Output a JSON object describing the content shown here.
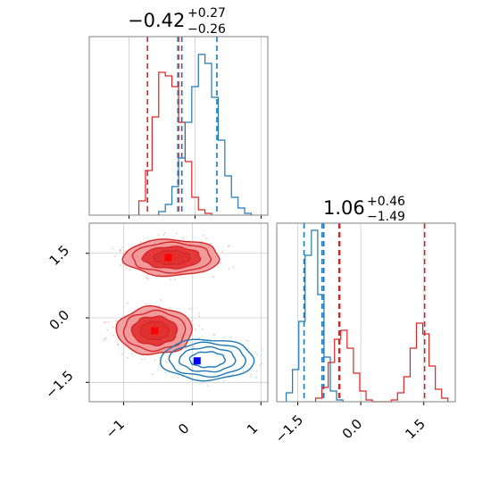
{
  "titles": {
    "p1": {
      "main": "−0.42",
      "sup": "+0.27",
      "sub": "−0.26"
    },
    "p2": {
      "main": "1.06",
      "sup": "+0.46",
      "sub": "−1.49"
    }
  },
  "colors": {
    "red": "#d62728",
    "blue": "#1f77b4",
    "red_fill": "#f0999a",
    "red_dark": "#e03030",
    "marker_red": "#ff0000",
    "marker_blue": "#0000ff",
    "grid": "#cccccc",
    "frame": "#808080"
  },
  "chart_data": [
    {
      "type": "histogram",
      "panel": "marginal-param1",
      "xlim": [
        -1.6,
        1.1
      ],
      "xticks": [
        -1,
        0,
        1
      ],
      "grid": true,
      "series": [
        {
          "color": "red",
          "quantiles": [
            -0.72,
            -0.25,
            -0.2
          ],
          "bins_x": [
            -0.8,
            -0.7,
            -0.6,
            -0.5,
            -0.4,
            -0.3,
            -0.2,
            -0.1,
            0.0,
            0.1,
            0.2
          ],
          "heights": [
            0.08,
            0.25,
            0.55,
            0.8,
            0.78,
            0.72,
            0.52,
            0.3,
            0.1,
            0.03,
            0.01
          ]
        },
        {
          "color": "blue",
          "quantiles": [
            -0.26,
            -0.2,
            0.33
          ],
          "bins_x": [
            -0.5,
            -0.4,
            -0.3,
            -0.2,
            -0.1,
            0.0,
            0.1,
            0.2,
            0.3,
            0.4,
            0.5,
            0.6,
            0.7,
            0.8
          ],
          "heights": [
            0.02,
            0.06,
            0.16,
            0.32,
            0.52,
            0.72,
            0.9,
            0.85,
            0.66,
            0.42,
            0.22,
            0.1,
            0.04,
            0.01
          ]
        }
      ]
    },
    {
      "type": "histogram",
      "panel": "marginal-param2",
      "xlim": [
        -2.0,
        2.25
      ],
      "xticks": [
        -1.5,
        0.0,
        1.5
      ],
      "xtick_labels": [
        "−1.5",
        "0.0",
        "1.5"
      ],
      "grid": true,
      "series": [
        {
          "color": "blue",
          "quantiles": [
            -1.35,
            -0.92,
            -0.88
          ],
          "bins_x": [
            -1.7,
            -1.55,
            -1.4,
            -1.25,
            -1.1,
            -0.95,
            -0.8,
            -0.65,
            -0.5
          ],
          "heights": [
            0.05,
            0.18,
            0.45,
            0.82,
            0.96,
            0.6,
            0.25,
            0.06,
            0.01
          ]
        },
        {
          "color": "red",
          "quantiles": [
            -0.52,
            -0.5,
            1.52
          ],
          "bins_x": [
            -1.0,
            -0.85,
            -0.7,
            -0.55,
            -0.4,
            -0.25,
            -0.1,
            0.05,
            0.2,
            0.35,
            0.5,
            0.65,
            0.8,
            0.95,
            1.1,
            1.25,
            1.4,
            1.55,
            1.7,
            1.85,
            2.0
          ],
          "heights": [
            0.02,
            0.08,
            0.22,
            0.35,
            0.4,
            0.3,
            0.16,
            0.06,
            0.01,
            0.0,
            0.0,
            0.0,
            0.01,
            0.05,
            0.14,
            0.3,
            0.44,
            0.38,
            0.2,
            0.07,
            0.02
          ]
        }
      ]
    },
    {
      "type": "contour",
      "panel": "joint",
      "xlim": [
        -1.5,
        1.1
      ],
      "ylim": [
        -1.95,
        2.2
      ],
      "xticks": [
        -1,
        0,
        1
      ],
      "yticks": [
        -1.5,
        0.0,
        1.5
      ],
      "xtick_labels": [
        "−1",
        "0",
        "1"
      ],
      "ytick_labels": [
        "−1.5",
        "0.0",
        "1.5"
      ],
      "grid": true,
      "markers": [
        {
          "color": "marker_red",
          "x": -0.35,
          "y": 1.4
        },
        {
          "color": "marker_red",
          "x": -0.55,
          "y": -0.3
        },
        {
          "color": "marker_blue",
          "x": 0.07,
          "y": -1.0
        }
      ],
      "modes": [
        {
          "color": "red",
          "cx": -0.3,
          "cy": 1.4,
          "rx": 0.7,
          "ry": 0.42
        },
        {
          "color": "red",
          "cx": -0.55,
          "cy": -0.3,
          "rx": 0.55,
          "ry": 0.55
        },
        {
          "color": "blue",
          "cx": 0.22,
          "cy": -0.97,
          "rx": 0.68,
          "ry": 0.47
        }
      ]
    }
  ]
}
